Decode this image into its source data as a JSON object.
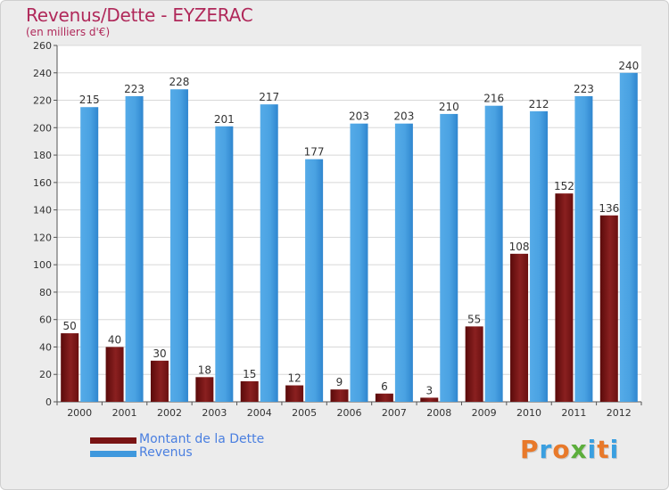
{
  "title": "Revenus/Dette - EYZERAC",
  "subtitle": "(en milliers d'€)",
  "legend": [
    {
      "label": "Montant de la Dette",
      "color": "#7a1414"
    },
    {
      "label": "Revenus",
      "color": "#3f98dd"
    }
  ],
  "logo": {
    "text": "Proxiti",
    "letters": [
      "P",
      "r",
      "o",
      "x",
      "i",
      "t",
      "i"
    ],
    "colors": [
      "#e8792a",
      "#3a9fe0",
      "#e8792a",
      "#5cae3c",
      "#3a9fe0",
      "#e8792a",
      "#3a9fe0"
    ]
  },
  "chart_data": {
    "type": "bar",
    "categories": [
      "2000",
      "2001",
      "2002",
      "2003",
      "2004",
      "2005",
      "2006",
      "2007",
      "2008",
      "2009",
      "2010",
      "2011",
      "2012"
    ],
    "series": [
      {
        "name": "Montant de la Dette",
        "color": "#7a1414",
        "values": [
          50,
          40,
          30,
          18,
          15,
          12,
          9,
          6,
          3,
          55,
          108,
          152,
          136
        ]
      },
      {
        "name": "Revenus",
        "color": "#3f98dd",
        "values": [
          215,
          223,
          228,
          201,
          217,
          177,
          203,
          203,
          210,
          216,
          212,
          223,
          240
        ]
      }
    ],
    "ylim": [
      0,
      260
    ],
    "yticks": [
      0,
      20,
      40,
      60,
      80,
      100,
      120,
      140,
      160,
      180,
      200,
      220,
      240,
      260
    ],
    "grid": true,
    "legend_position": "bottom-left"
  }
}
